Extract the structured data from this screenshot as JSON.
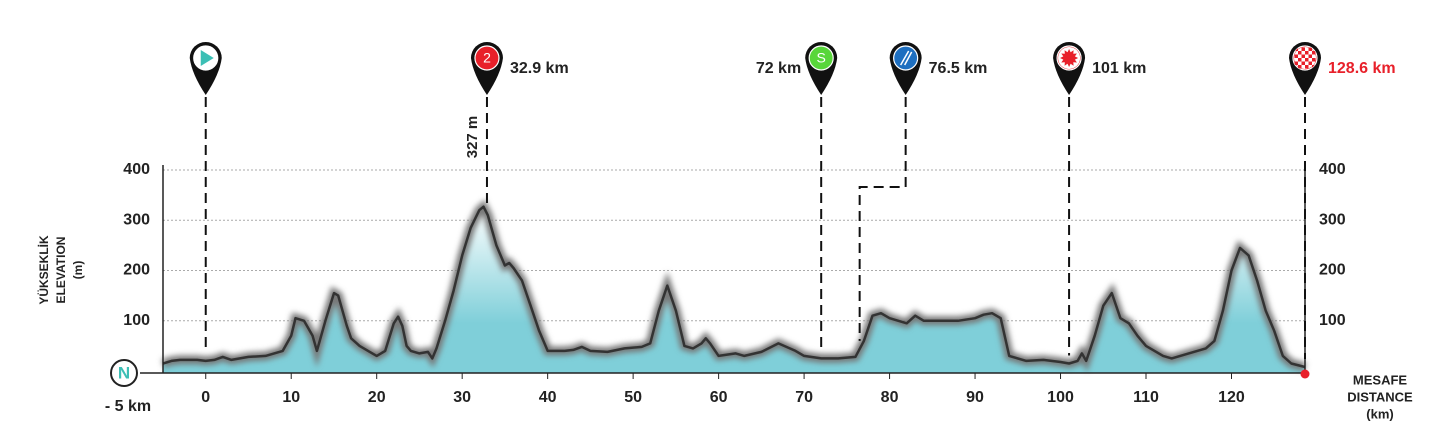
{
  "chart_data": {
    "type": "area",
    "x": [
      -5,
      -4,
      -3,
      -1,
      0,
      1,
      2,
      3,
      4,
      5,
      7,
      9,
      10,
      10.5,
      11.5,
      12.5,
      13,
      14,
      15,
      15.5,
      16.5,
      17,
      18,
      19,
      20,
      21,
      22,
      22.5,
      23,
      23.5,
      24,
      25,
      26,
      26.5,
      27,
      28,
      29,
      30,
      31,
      32,
      32.5,
      33,
      34,
      35,
      35.5,
      36,
      37,
      38,
      39,
      40,
      42,
      43,
      44,
      45,
      47,
      49,
      51,
      52,
      53,
      54,
      55,
      56,
      57,
      58,
      58.5,
      59,
      60,
      62,
      63,
      65,
      67,
      69,
      70,
      72,
      74,
      76,
      77,
      78,
      79,
      80,
      82,
      83,
      84,
      85,
      88,
      90,
      91,
      92,
      93,
      94,
      96,
      98,
      100,
      101,
      102,
      102.5,
      103,
      104,
      105,
      106,
      107,
      108,
      109,
      110,
      112,
      113,
      115,
      117,
      118,
      119,
      120,
      121,
      122,
      123,
      124,
      125,
      126,
      127,
      128.6
    ],
    "values": [
      15,
      20,
      22,
      22,
      20,
      22,
      28,
      22,
      25,
      28,
      30,
      40,
      70,
      105,
      100,
      70,
      40,
      100,
      155,
      150,
      90,
      65,
      50,
      40,
      30,
      40,
      95,
      108,
      90,
      50,
      40,
      35,
      38,
      25,
      45,
      100,
      160,
      230,
      285,
      320,
      327,
      310,
      250,
      210,
      215,
      205,
      180,
      130,
      80,
      40,
      40,
      42,
      48,
      40,
      38,
      45,
      48,
      55,
      120,
      170,
      120,
      50,
      45,
      55,
      65,
      55,
      30,
      35,
      30,
      38,
      55,
      40,
      30,
      25,
      25,
      28,
      60,
      110,
      115,
      105,
      95,
      110,
      100,
      100,
      100,
      105,
      112,
      115,
      105,
      30,
      20,
      22,
      18,
      15,
      20,
      35,
      20,
      70,
      130,
      155,
      105,
      95,
      70,
      50,
      30,
      25,
      35,
      45,
      60,
      120,
      200,
      245,
      230,
      180,
      120,
      80,
      30,
      15,
      8
    ],
    "xlim": [
      -5,
      128.6
    ],
    "ylim": [
      0,
      400
    ],
    "xticks": [
      0,
      10,
      20,
      30,
      40,
      50,
      60,
      70,
      80,
      90,
      100,
      110,
      120
    ],
    "yticks": [
      100,
      200,
      300,
      400
    ],
    "grid": true,
    "fill_color": "#7fcfd9",
    "line_color": "#333333",
    "y_axis_label": [
      "YÜKSEKLİK",
      "ELEVATION",
      "(m)"
    ],
    "x_axis_label": [
      "MESAFE",
      "DISTANCE",
      "(km)"
    ],
    "start": {
      "symbol": "N",
      "label": "- 5 km"
    },
    "peak_label": "327 m",
    "markers": [
      {
        "x": 0,
        "icon": "start",
        "color": "#ffffff"
      },
      {
        "x": 32.9,
        "label": "32.9 km",
        "icon": "text",
        "symbol": "2",
        "color": "#e8202a"
      },
      {
        "x": 72,
        "label": "72 km",
        "icon": "text",
        "symbol": "S",
        "color": "#58d63a"
      },
      {
        "x": 76.5,
        "label": "76.5 km",
        "icon": "feed",
        "color": "#1e6fc0"
      },
      {
        "x": 101,
        "label": "101 km",
        "icon": "gear",
        "color": "#e8202a"
      },
      {
        "x": 128.6,
        "label": "128.6 km",
        "icon": "finish",
        "color": "#e8202a",
        "label_color": "#e8202a"
      }
    ]
  }
}
